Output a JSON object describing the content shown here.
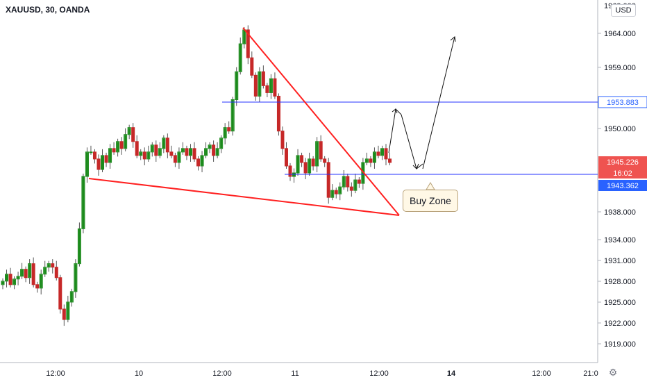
{
  "header": {
    "symbol": "XAUUSD, 30, OANDA",
    "currency": "USD"
  },
  "y_axis": {
    "ticks": [
      "1964.000",
      "1959.000",
      "1950.000",
      "1938.000",
      "1934.000",
      "1931.000",
      "1928.000",
      "1925.000",
      "1922.000",
      "1919.000"
    ],
    "partial_ticks": [
      "1969.000",
      "1946.000"
    ]
  },
  "x_axis": {
    "ticks": [
      "12:00",
      "10",
      "12:00",
      "11",
      "12:00",
      "14",
      "12:00",
      "21:0"
    ],
    "bold": [
      false,
      false,
      false,
      false,
      false,
      true,
      false,
      false
    ]
  },
  "price_tags": [
    {
      "label": "1953.883",
      "style": "outline",
      "color": "#2962ff"
    },
    {
      "label": "1945.226",
      "style": "fill",
      "color": "#ef5350"
    },
    {
      "label": "16:02",
      "style": "fill",
      "color": "#ef5350"
    },
    {
      "label": "1943.362",
      "style": "fill",
      "color": "#2962ff"
    }
  ],
  "annotation": {
    "callout": "Buy Zone"
  },
  "colors": {
    "up": "#26a69a",
    "up_body": "#1b8a1b",
    "down": "#c62828",
    "wick": "#555555",
    "trendline": "#ff2020",
    "hline": "#2330ff",
    "arrow": "#111111"
  },
  "chart_data": {
    "type": "candlestick",
    "title": "XAUUSD, 30, OANDA",
    "ylim": [
      1917,
      1970
    ],
    "levels": [
      1953.883,
      1943.362
    ],
    "last_price": 1945.226,
    "close_series": [
      1928.5,
      1929.5,
      1928.0,
      1928.8,
      1929.2,
      1930.2,
      1929.0,
      1931.0,
      1928.0,
      1927.5,
      1929.5,
      1930.5,
      1931.0,
      1930.5,
      1929.0,
      1924.5,
      1923.0,
      1925.5,
      1927.0,
      1931.0,
      1936.0,
      1943.5,
      1947.0,
      1947.0,
      1946.0,
      1944.5,
      1946.5,
      1945.5,
      1947.5,
      1947.0,
      1948.5,
      1947.5,
      1949.5,
      1950.5,
      1948.5,
      1946.5,
      1947.0,
      1946.0,
      1947.0,
      1948.0,
      1946.5,
      1947.5,
      1949.0,
      1947.0,
      1946.5,
      1945.5,
      1947.0,
      1947.5,
      1946.5,
      1947.5,
      1946.0,
      1945.0,
      1946.5,
      1947.5,
      1948.0,
      1946.5,
      1947.5,
      1949.0,
      1950.5,
      1950.0,
      1954.5,
      1958.5,
      1962.5,
      1964.5,
      1960.5,
      1958.0,
      1955.0,
      1958.5,
      1956.5,
      1955.5,
      1957.5,
      1955.0,
      1950.0,
      1947.5,
      1945.0,
      1943.5,
      1944.0,
      1946.5,
      1945.5,
      1944.0,
      1946.0,
      1945.0,
      1948.5,
      1946.0,
      1945.5,
      1940.5,
      1941.5,
      1941.0,
      1942.0,
      1943.5,
      1942.0,
      1941.5,
      1943.0,
      1942.5,
      1945.5,
      1946.0,
      1945.5,
      1947.0,
      1946.5,
      1947.5,
      1946.0,
      1945.5
    ]
  }
}
